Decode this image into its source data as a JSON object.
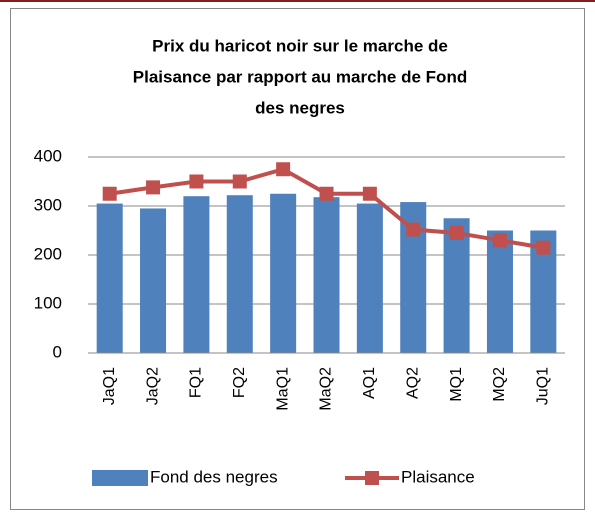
{
  "chart_data": {
    "type": "bar",
    "title": [
      "Prix du haricot noir sur le marche de",
      "Plaisance par rapport au marche de Fond",
      "des negres"
    ],
    "categories": [
      "JaQ1",
      "JaQ2",
      "FQ1",
      "FQ2",
      "MaQ1",
      "MaQ2",
      "AQ1",
      "AQ2",
      "MQ1",
      "MQ2",
      "JuQ1"
    ],
    "series": [
      {
        "name": "Fond des negres",
        "type": "bar",
        "color": "#4f81bd",
        "values": [
          305,
          295,
          320,
          322,
          325,
          318,
          305,
          308,
          275,
          250,
          250
        ]
      },
      {
        "name": "Plaisance",
        "type": "line",
        "color": "#c0504d",
        "values": [
          325,
          338,
          350,
          350,
          375,
          325,
          325,
          252,
          245,
          230,
          215
        ]
      }
    ],
    "ylim": [
      0,
      400
    ],
    "yticks": [
      0,
      100,
      200,
      300,
      400
    ],
    "grid": true,
    "legend": "bottom"
  }
}
